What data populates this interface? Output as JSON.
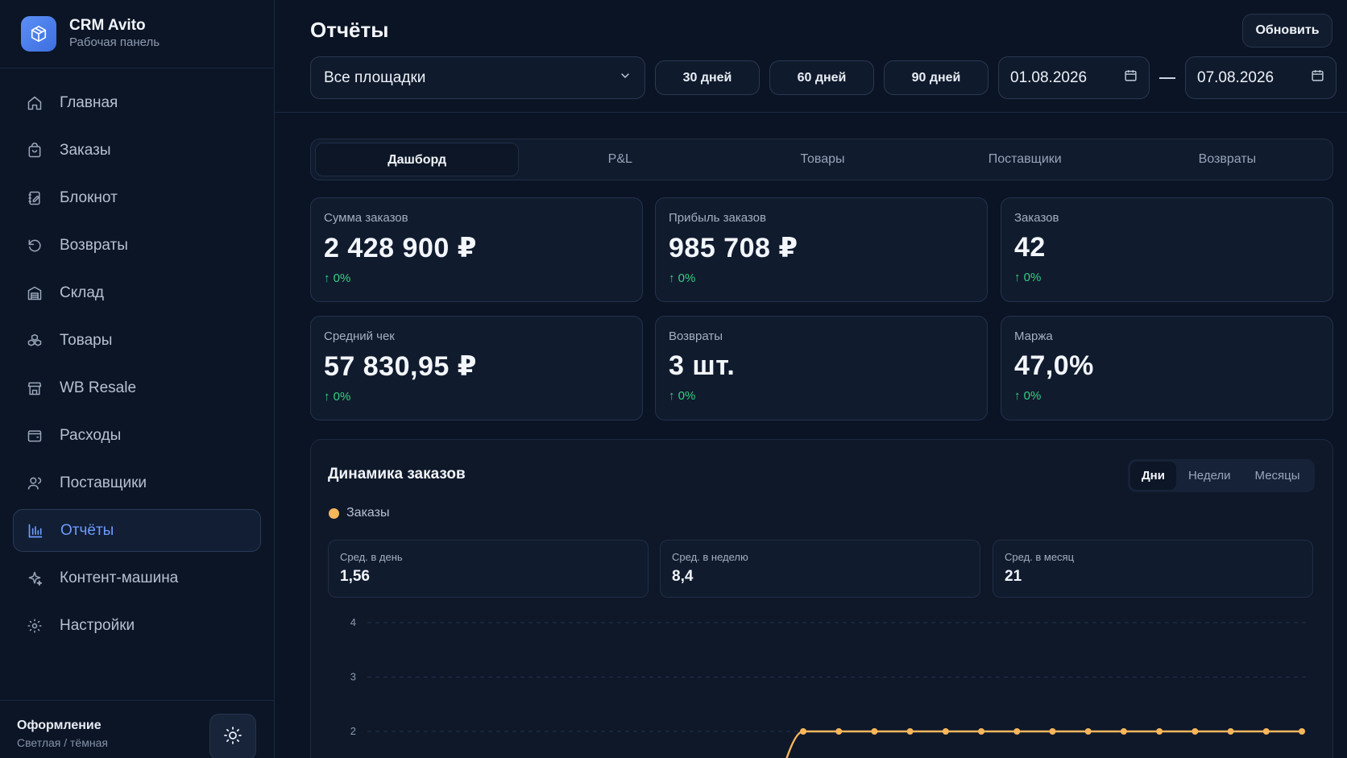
{
  "brand": {
    "title": "CRM Avito",
    "subtitle": "Рабочая панель"
  },
  "sidebar": {
    "items": [
      {
        "label": "Главная",
        "icon": "home-icon"
      },
      {
        "label": "Заказы",
        "icon": "shopping-bag-icon"
      },
      {
        "label": "Блокнот",
        "icon": "notebook-icon"
      },
      {
        "label": "Возвраты",
        "icon": "undo-icon"
      },
      {
        "label": "Склад",
        "icon": "warehouse-icon"
      },
      {
        "label": "Товары",
        "icon": "boxes-icon"
      },
      {
        "label": "WB Resale",
        "icon": "store-icon"
      },
      {
        "label": "Расходы",
        "icon": "wallet-icon"
      },
      {
        "label": "Поставщики",
        "icon": "users-icon"
      },
      {
        "label": "Отчёты",
        "icon": "bar-chart-icon",
        "active": true
      },
      {
        "label": "Контент-машина",
        "icon": "sparkles-icon"
      },
      {
        "label": "Настройки",
        "icon": "gear-icon"
      }
    ],
    "footer": {
      "title": "Оформление",
      "subtitle": "Светлая / тёмная"
    }
  },
  "header": {
    "title": "Отчёты",
    "refresh_label": "Обновить",
    "platform_select": "Все площадки",
    "periods": [
      "30 дней",
      "60 дней",
      "90 дней"
    ],
    "date_from": "01.08.2026",
    "date_to": "07.08.2026"
  },
  "tabs": [
    "Дашборд",
    "P&L",
    "Товары",
    "Поставщики",
    "Возвраты"
  ],
  "cards": [
    {
      "label": "Сумма заказов",
      "value": "2 428 900 ₽",
      "delta": "0%"
    },
    {
      "label": "Прибыль заказов",
      "value": "985 708 ₽",
      "delta": "0%"
    },
    {
      "label": "Заказов",
      "value": "42",
      "delta": "0%"
    },
    {
      "label": "Средний чек",
      "value": "57 830,95 ₽",
      "delta": "0%"
    },
    {
      "label": "Возвраты",
      "value": "3 шт.",
      "delta": "0%"
    },
    {
      "label": "Маржа",
      "value": "47,0%",
      "delta": "0%"
    }
  ],
  "chart": {
    "title": "Динамика заказов",
    "granularity": [
      "Дни",
      "Недели",
      "Месяцы"
    ],
    "legend": "Заказы",
    "stats": [
      {
        "label": "Сред. в день",
        "value": "1,56"
      },
      {
        "label": "Сред. в неделю",
        "value": "8,4"
      },
      {
        "label": "Сред. в месяц",
        "value": "21"
      }
    ]
  },
  "colors": {
    "accent": "#6f9bff",
    "positive": "#35d07f",
    "series": "#f8b65c",
    "background": "#0b1424"
  },
  "chart_data": {
    "type": "line",
    "series": [
      {
        "name": "Заказы",
        "values": [
          2,
          2,
          2,
          2,
          2,
          2,
          2,
          2,
          2,
          2,
          2,
          2,
          2,
          2,
          2
        ]
      }
    ],
    "yticks": [
      2,
      3,
      4
    ],
    "ylim": [
      0,
      4
    ],
    "grid": true,
    "legend": "top-left"
  }
}
